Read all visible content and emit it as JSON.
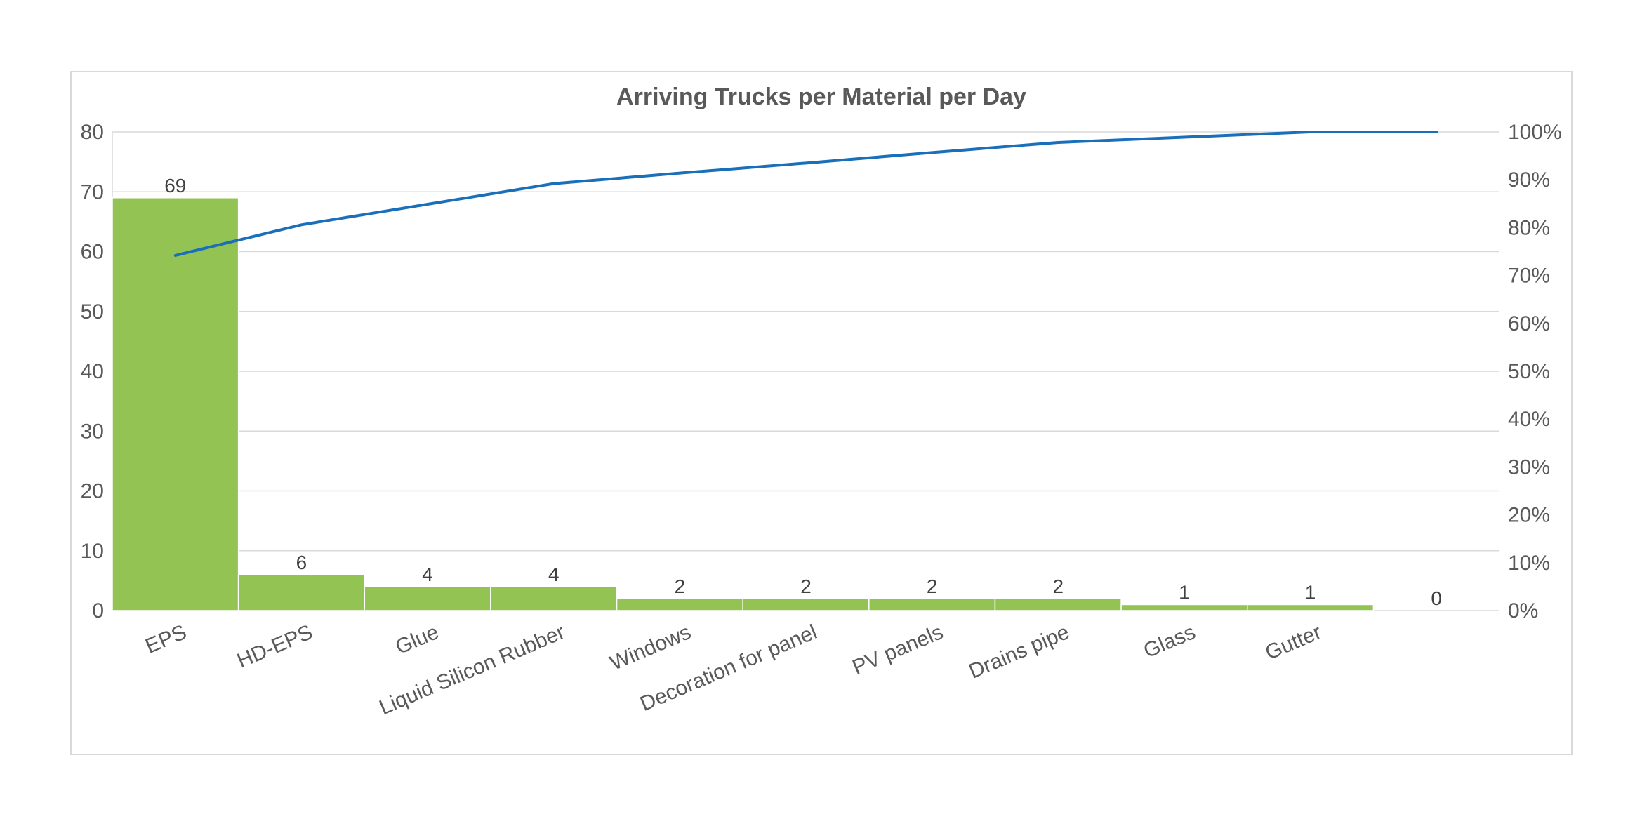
{
  "chart_data": {
    "type": "bar",
    "title": "Arriving Trucks per Material per Day",
    "categories": [
      "EPS",
      "HD-EPS",
      "Glue",
      "Liquid Silicon Rubber",
      "Windows",
      "Decoration for panel",
      "PV panels",
      "Drains pipe",
      "Glass",
      "Gutter",
      ""
    ],
    "series": [
      {
        "type": "bar",
        "values": [
          69,
          6,
          4,
          4,
          2,
          2,
          2,
          2,
          1,
          1,
          0
        ],
        "color": "#92c353",
        "axis": "left"
      },
      {
        "type": "line",
        "values": [
          74.2,
          80.6,
          84.9,
          89.2,
          91.4,
          93.5,
          95.7,
          97.8,
          98.9,
          100,
          100
        ],
        "color": "#1a6fba",
        "axis": "right"
      }
    ],
    "data_labels": [
      "69",
      "6",
      "4",
      "4",
      "2",
      "2",
      "2",
      "2",
      "1",
      "1",
      "0"
    ],
    "y_left": {
      "ylim": [
        0,
        80
      ],
      "ticks": [
        0,
        10,
        20,
        30,
        40,
        50,
        60,
        70,
        80
      ],
      "tick_labels": [
        "0",
        "10",
        "20",
        "30",
        "40",
        "50",
        "60",
        "70",
        "80"
      ]
    },
    "y_right": {
      "ylim": [
        0,
        100
      ],
      "ticks": [
        0,
        10,
        20,
        30,
        40,
        50,
        60,
        70,
        80,
        90,
        100
      ],
      "tick_labels": [
        "0%",
        "10%",
        "20%",
        "30%",
        "40%",
        "50%",
        "60%",
        "70%",
        "80%",
        "90%",
        "100%"
      ]
    },
    "xlabel": "",
    "ylabel": "",
    "grid": true,
    "legend": "none"
  }
}
